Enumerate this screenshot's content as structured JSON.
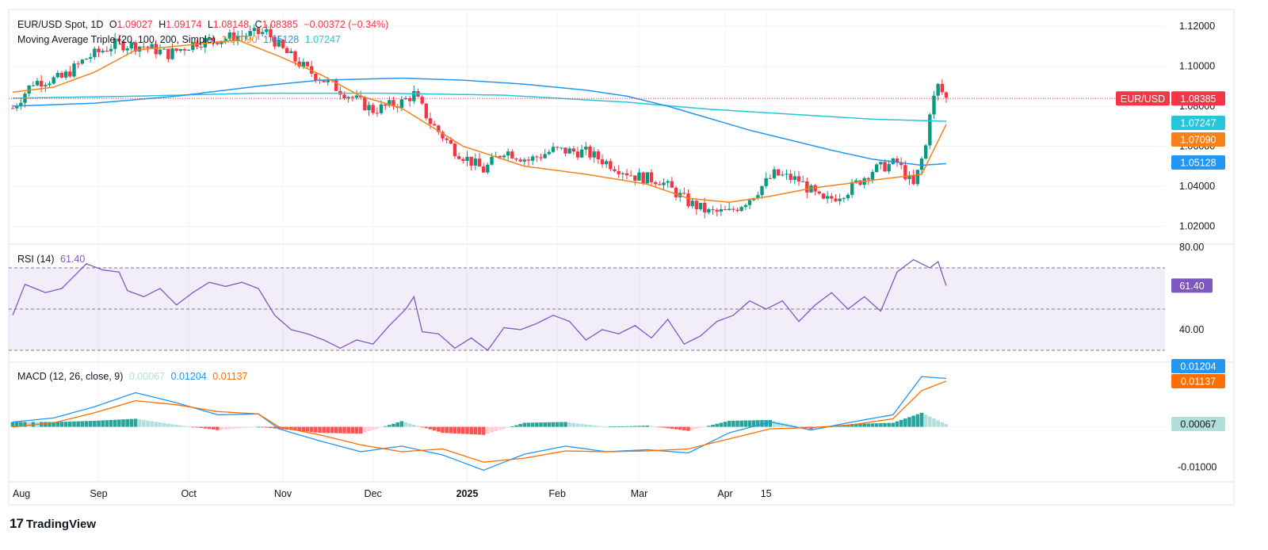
{
  "header": {
    "symbol": "EUR/USD Spot, 1D",
    "open_label": "O",
    "open": "1.09027",
    "high_label": "H",
    "high": "1.09174",
    "low_label": "L",
    "low": "1.08148",
    "close_label": "C",
    "close": "1.08385",
    "change": "−0.00372 (−0.34%)"
  },
  "ma_legend": {
    "label": "Moving Average Triple (20, 100, 200, Simple)",
    "v20": "1.07090",
    "v100": "1.05128",
    "v200": "1.07247"
  },
  "rsi_legend": {
    "label": "RSI (14)",
    "value": "61.40"
  },
  "macd_legend": {
    "label": "MACD (12, 26, close, 9)",
    "hist": "0.00067",
    "macd": "0.01204",
    "signal": "0.01137"
  },
  "brand": {
    "name": "TradingView"
  },
  "colors": {
    "up": "#089981",
    "down": "#f23645",
    "ma20": "#f7821b",
    "ma100": "#2196f3",
    "ma200": "#26c6da",
    "rsi": "#7e57c2",
    "macd": "#2196f3",
    "signal": "#ff6d00",
    "hist_up_strong": "#26a69a",
    "hist_up_weak": "#b2dfdb",
    "hist_down_strong": "#ff5252",
    "hist_down_weak": "#ffcdd2"
  },
  "chart_data": [
    {
      "type": "candlestick",
      "title": "EUR/USD Spot, 1D",
      "x_ticks": [
        "Aug",
        "Sep",
        "Oct",
        "Nov",
        "Dec",
        "2025",
        "Feb",
        "Mar",
        "Apr",
        "15"
      ],
      "y_ticks": [
        "1.12000",
        "1.10000",
        "1.08000",
        "1.06000",
        "1.04000",
        "1.02000"
      ],
      "ylim": [
        1.0115,
        1.1275
      ],
      "price_label": {
        "name": "EUR/USD",
        "value": "1.08385"
      },
      "ma_labels": {
        "ma200": "1.07247",
        "ma20": "1.07090",
        "ma100": "1.05128"
      },
      "ma_keypoints": {
        "ma20": [
          [
            0,
            1.087
          ],
          [
            10,
            1.0895
          ],
          [
            20,
            1.097
          ],
          [
            30,
            1.108
          ],
          [
            45,
            1.111
          ],
          [
            55,
            1.113
          ],
          [
            65,
            1.105
          ],
          [
            75,
            1.096
          ],
          [
            85,
            1.085
          ],
          [
            95,
            1.079
          ],
          [
            110,
            1.06
          ],
          [
            125,
            1.05
          ],
          [
            140,
            1.046
          ],
          [
            155,
            1.041
          ],
          [
            165,
            1.034
          ],
          [
            175,
            1.032
          ],
          [
            185,
            1.035
          ],
          [
            195,
            1.039
          ],
          [
            210,
            1.043
          ],
          [
            222,
            1.046
          ],
          [
            228,
            1.0709
          ]
        ],
        "ma100": [
          [
            0,
            1.08
          ],
          [
            20,
            1.0815
          ],
          [
            40,
            1.085
          ],
          [
            60,
            1.09
          ],
          [
            75,
            1.093
          ],
          [
            95,
            1.094
          ],
          [
            110,
            1.093
          ],
          [
            125,
            1.091
          ],
          [
            140,
            1.088
          ],
          [
            150,
            1.085
          ],
          [
            160,
            1.08
          ],
          [
            170,
            1.074
          ],
          [
            180,
            1.068
          ],
          [
            190,
            1.063
          ],
          [
            200,
            1.058
          ],
          [
            210,
            1.0535
          ],
          [
            222,
            1.0505
          ],
          [
            228,
            1.05128
          ]
        ],
        "ma200": [
          [
            0,
            1.084
          ],
          [
            30,
            1.085
          ],
          [
            60,
            1.0865
          ],
          [
            90,
            1.0865
          ],
          [
            120,
            1.0855
          ],
          [
            150,
            1.082
          ],
          [
            170,
            1.0785
          ],
          [
            190,
            1.076
          ],
          [
            210,
            1.0735
          ],
          [
            228,
            1.07247
          ]
        ]
      }
    },
    {
      "type": "line",
      "title": "RSI (14)",
      "y_ticks": [
        "80.00",
        "40.00"
      ],
      "ylim": [
        25,
        80
      ],
      "bands": [
        70,
        50,
        30
      ],
      "last_value": "61.40",
      "keypoints": [
        [
          0,
          47
        ],
        [
          3,
          62
        ],
        [
          8,
          58
        ],
        [
          12,
          60
        ],
        [
          15,
          66
        ],
        [
          18,
          72
        ],
        [
          22,
          69
        ],
        [
          26,
          68
        ],
        [
          28,
          59
        ],
        [
          32,
          56
        ],
        [
          36,
          60
        ],
        [
          40,
          52
        ],
        [
          44,
          58
        ],
        [
          48,
          63
        ],
        [
          52,
          61
        ],
        [
          56,
          63
        ],
        [
          60,
          60
        ],
        [
          64,
          47
        ],
        [
          68,
          40
        ],
        [
          72,
          38
        ],
        [
          76,
          35
        ],
        [
          80,
          31
        ],
        [
          84,
          35
        ],
        [
          88,
          33
        ],
        [
          92,
          42
        ],
        [
          96,
          50
        ],
        [
          98,
          56
        ],
        [
          100,
          39
        ],
        [
          104,
          38
        ],
        [
          108,
          31
        ],
        [
          112,
          36
        ],
        [
          116,
          30
        ],
        [
          120,
          41
        ],
        [
          124,
          40
        ],
        [
          128,
          43
        ],
        [
          132,
          47
        ],
        [
          136,
          44
        ],
        [
          140,
          35
        ],
        [
          144,
          40
        ],
        [
          148,
          38
        ],
        [
          152,
          42
        ],
        [
          156,
          36
        ],
        [
          160,
          45
        ],
        [
          164,
          33
        ],
        [
          168,
          37
        ],
        [
          172,
          44
        ],
        [
          176,
          47
        ],
        [
          180,
          54
        ],
        [
          184,
          50
        ],
        [
          188,
          54
        ],
        [
          192,
          44
        ],
        [
          196,
          52
        ],
        [
          200,
          58
        ],
        [
          204,
          50
        ],
        [
          208,
          56
        ],
        [
          212,
          49
        ],
        [
          216,
          68
        ],
        [
          220,
          74
        ],
        [
          224,
          70
        ],
        [
          226,
          73
        ],
        [
          228,
          61.4
        ]
      ]
    },
    {
      "type": "bar",
      "title": "MACD (12, 26, close, 9)",
      "y_ticks": [
        "-0.01000"
      ],
      "ylim": [
        -0.0135,
        0.0155
      ],
      "last_values": {
        "hist": "0.00067",
        "macd": "0.01204",
        "signal": "0.01137"
      },
      "macd_keypoints": [
        [
          0,
          0.0012
        ],
        [
          10,
          0.0022
        ],
        [
          20,
          0.005
        ],
        [
          30,
          0.0085
        ],
        [
          40,
          0.006
        ],
        [
          50,
          0.003
        ],
        [
          60,
          0.0032
        ],
        [
          65,
          -0.0005
        ],
        [
          75,
          -0.0035
        ],
        [
          85,
          -0.0062
        ],
        [
          95,
          -0.0048
        ],
        [
          105,
          -0.007
        ],
        [
          115,
          -0.0108
        ],
        [
          125,
          -0.0068
        ],
        [
          135,
          -0.0048
        ],
        [
          145,
          -0.0062
        ],
        [
          155,
          -0.0057
        ],
        [
          165,
          -0.0065
        ],
        [
          175,
          -0.0015
        ],
        [
          185,
          0.0012
        ],
        [
          195,
          -0.0008
        ],
        [
          205,
          0.0012
        ],
        [
          215,
          0.003
        ],
        [
          222,
          0.0125
        ],
        [
          228,
          0.01204
        ]
      ],
      "signal_keypoints": [
        [
          0,
          0.0
        ],
        [
          10,
          0.001
        ],
        [
          20,
          0.0035
        ],
        [
          30,
          0.0065
        ],
        [
          40,
          0.0055
        ],
        [
          50,
          0.0038
        ],
        [
          60,
          0.0032
        ],
        [
          65,
          0.0
        ],
        [
          75,
          -0.002
        ],
        [
          85,
          -0.0045
        ],
        [
          95,
          -0.0062
        ],
        [
          105,
          -0.0055
        ],
        [
          115,
          -0.0088
        ],
        [
          125,
          -0.0078
        ],
        [
          135,
          -0.006
        ],
        [
          145,
          -0.0062
        ],
        [
          155,
          -0.006
        ],
        [
          165,
          -0.0055
        ],
        [
          175,
          -0.003
        ],
        [
          185,
          -0.0005
        ],
        [
          195,
          -0.0002
        ],
        [
          205,
          0.0005
        ],
        [
          215,
          0.002
        ],
        [
          222,
          0.009
        ],
        [
          228,
          0.01137
        ]
      ]
    }
  ]
}
